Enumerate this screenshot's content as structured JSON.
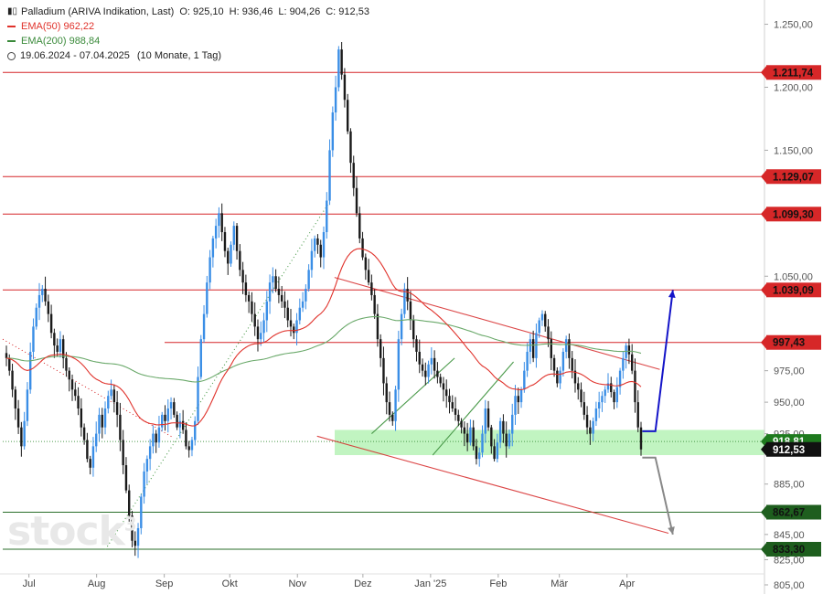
{
  "legend": {
    "title": "Palladium (ARIVA Indikation, Last)",
    "ohlc": {
      "o": "O: 925,10",
      "h": "H: 936,46",
      "l": "L: 904,26",
      "c": "C: 912,53"
    },
    "ema50": "EMA(50)  962,22",
    "ema200": "EMA(200)  988,84",
    "range": "19.06.2024 - 07.04.2025",
    "period": "(10 Monate, 1 Tag)"
  },
  "watermark": {
    "text": "stock",
    "sup": "3"
  },
  "colors": {
    "up": "#3a8ee6",
    "down": "#1a1a1a",
    "ema50": "#e0322b",
    "ema200": "#6aa96a",
    "resistance": "#d62728",
    "support": "#2a6e2a",
    "zone": "#a6f0a6",
    "blue_arrow": "#1414c8",
    "grey_arrow": "#888888"
  },
  "chart_data": {
    "type": "candlestick",
    "title": "Palladium (ARIVA Indikation, Last)",
    "ylim": [
      805,
      1262
    ],
    "yticks": [
      805,
      825,
      845,
      865,
      885,
      925,
      950,
      975,
      1000,
      1050,
      1100,
      1150,
      1200,
      1250
    ],
    "ytick_labels": [
      "805,00",
      "825,00",
      "845,00",
      "865,00",
      "885,00",
      "925,00",
      "950,00",
      "975,00",
      "1.000,00",
      "1.050,00",
      "1.100,00",
      "1.150,00",
      "1.200,00",
      "1.250,00"
    ],
    "x_range": [
      "2024-06-19",
      "2025-04-07"
    ],
    "x_ticks": [
      {
        "date": "2024-07-01",
        "label": "Jul"
      },
      {
        "date": "2024-08-01",
        "label": "Aug"
      },
      {
        "date": "2024-09-01",
        "label": "Sep"
      },
      {
        "date": "2024-10-01",
        "label": "Okt"
      },
      {
        "date": "2024-11-01",
        "label": "Nov"
      },
      {
        "date": "2024-12-01",
        "label": "Dez"
      },
      {
        "date": "2025-01-01",
        "label": "Jan '25"
      },
      {
        "date": "2025-02-01",
        "label": "Feb"
      },
      {
        "date": "2025-03-01",
        "label": "Mär"
      },
      {
        "date": "2025-04-01",
        "label": "Apr"
      }
    ],
    "closes": [
      985,
      975,
      960,
      945,
      930,
      915,
      935,
      960,
      990,
      1010,
      1025,
      1035,
      1040,
      1030,
      1020,
      1005,
      995,
      990,
      1000,
      985,
      975,
      968,
      960,
      955,
      945,
      930,
      920,
      905,
      898,
      915,
      925,
      940,
      930,
      945,
      955,
      960,
      950,
      940,
      920,
      900,
      880,
      860,
      840,
      836,
      850,
      875,
      895,
      905,
      915,
      925,
      918,
      930,
      940,
      935,
      945,
      950,
      940,
      930,
      935,
      928,
      915,
      912,
      920,
      935,
      970,
      1000,
      1020,
      1045,
      1065,
      1080,
      1090,
      1100,
      1085,
      1070,
      1060,
      1075,
      1090,
      1070,
      1055,
      1045,
      1035,
      1030,
      1020,
      1010,
      1000,
      1005,
      1015,
      1030,
      1045,
      1050,
      1040,
      1035,
      1030,
      1025,
      1015,
      1010,
      1005,
      1015,
      1025,
      1030,
      1040,
      1055,
      1070,
      1080,
      1075,
      1065,
      1085,
      1110,
      1150,
      1180,
      1200,
      1230,
      1210,
      1190,
      1165,
      1140,
      1120,
      1100,
      1080,
      1065,
      1055,
      1045,
      1035,
      1020,
      1000,
      985,
      965,
      950,
      940,
      935,
      960,
      1000,
      1020,
      1040,
      1030,
      1015,
      1000,
      990,
      980,
      975,
      970,
      980,
      985,
      975,
      970,
      965,
      960,
      955,
      950,
      945,
      940,
      935,
      930,
      925,
      918,
      930,
      915,
      905,
      910,
      925,
      945,
      930,
      915,
      905,
      918,
      935,
      925,
      915,
      925,
      940,
      955,
      950,
      960,
      975,
      990,
      1000,
      985,
      1005,
      1015,
      1020,
      1010,
      1000,
      985,
      975,
      965,
      975,
      990,
      1000,
      985,
      975,
      965,
      960,
      950,
      940,
      930,
      925,
      935,
      945,
      950,
      955,
      960,
      965,
      958,
      950,
      962,
      975,
      985,
      995,
      988,
      975,
      950,
      930,
      912.53
    ],
    "ema50_last": 962.22,
    "ema200_last": 988.84,
    "levels": [
      {
        "value": 1211.74,
        "label": "1.211,74",
        "kind": "resistance"
      },
      {
        "value": 1129.07,
        "label": "1.129,07",
        "kind": "resistance"
      },
      {
        "value": 1099.3,
        "label": "1.099,30",
        "kind": "resistance"
      },
      {
        "value": 1039.09,
        "label": "1.039,09",
        "kind": "resistance"
      },
      {
        "value": 997.43,
        "label": "997,43",
        "kind": "resistance"
      },
      {
        "value": 862.67,
        "label": "862,67",
        "kind": "support"
      },
      {
        "value": 833.3,
        "label": "833,30",
        "kind": "support"
      }
    ],
    "last_price": {
      "value": 912.53,
      "label": "912,53"
    },
    "zone": [
      908,
      928
    ],
    "dotted_level": 918.81,
    "dotted_label": "918,81",
    "annotations": [
      {
        "type": "trendline",
        "color": "red",
        "from": [
          "2024-11-18",
          1049
        ],
        "to": [
          "2025-04-16",
          976
        ]
      },
      {
        "type": "trendline",
        "color": "red",
        "from": [
          "2024-11-10",
          923
        ],
        "to": [
          "2025-04-20",
          846
        ]
      },
      {
        "type": "trendline",
        "color": "green_dotted",
        "from": [
          "2024-08-05",
          833
        ],
        "to": [
          "2024-11-15",
          1107
        ]
      },
      {
        "type": "trendline",
        "color": "red_dotted",
        "from": [
          "2024-06-19",
          1000
        ],
        "to": [
          "2024-09-05",
          922
        ]
      },
      {
        "type": "trendline",
        "color": "green",
        "from": [
          "2024-12-05",
          925
        ],
        "to": [
          "2025-01-12",
          985
        ]
      },
      {
        "type": "trendline",
        "color": "green",
        "from": [
          "2025-01-02",
          908
        ],
        "to": [
          "2025-02-08",
          982
        ]
      },
      {
        "type": "arrow",
        "color": "blue",
        "path": [
          [
            "2025-04-08",
            927
          ],
          [
            "2025-04-14",
            927
          ],
          [
            "2025-04-22",
            1039
          ]
        ]
      },
      {
        "type": "arrow",
        "color": "grey",
        "path": [
          [
            "2025-04-08",
            906
          ],
          [
            "2025-04-14",
            906
          ],
          [
            "2025-04-22",
            845
          ]
        ]
      }
    ]
  }
}
